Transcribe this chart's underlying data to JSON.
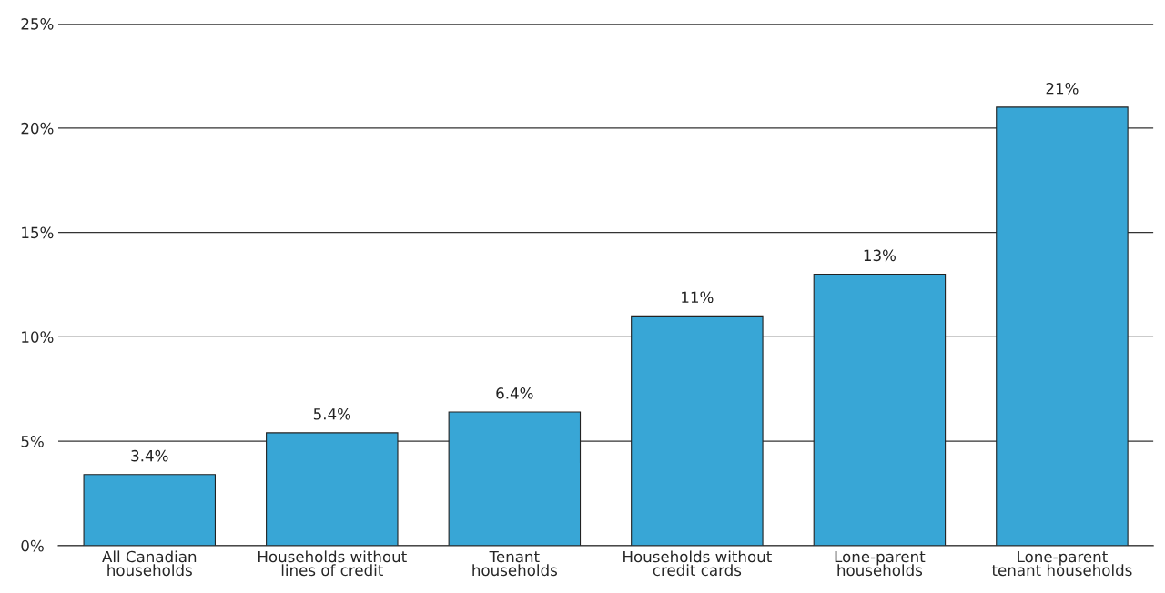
{
  "chart_data": {
    "type": "bar",
    "categories": [
      "All Canadian\nhouseholds",
      "Households without\nlines of credit",
      "Tenant\nhouseholds",
      "Households without\ncredit cards",
      "Lone-parent\nhouseholds",
      "Lone-parent\ntenant households"
    ],
    "values": [
      3.4,
      5.4,
      6.4,
      11,
      13,
      21
    ],
    "value_labels": [
      "3.4%",
      "5.4%",
      "6.4%",
      "11%",
      "13%",
      "21%"
    ],
    "color": "#38a6d6",
    "ylim": [
      0,
      25
    ],
    "yticks": [
      {
        "value": 0,
        "label": "0%"
      },
      {
        "value": 5,
        "label": "5%"
      },
      {
        "value": 10,
        "label": "10%"
      },
      {
        "value": 15,
        "label": "15%"
      },
      {
        "value": 20,
        "label": "20%"
      },
      {
        "value": 25,
        "label": "25%"
      }
    ],
    "grid": "y"
  }
}
